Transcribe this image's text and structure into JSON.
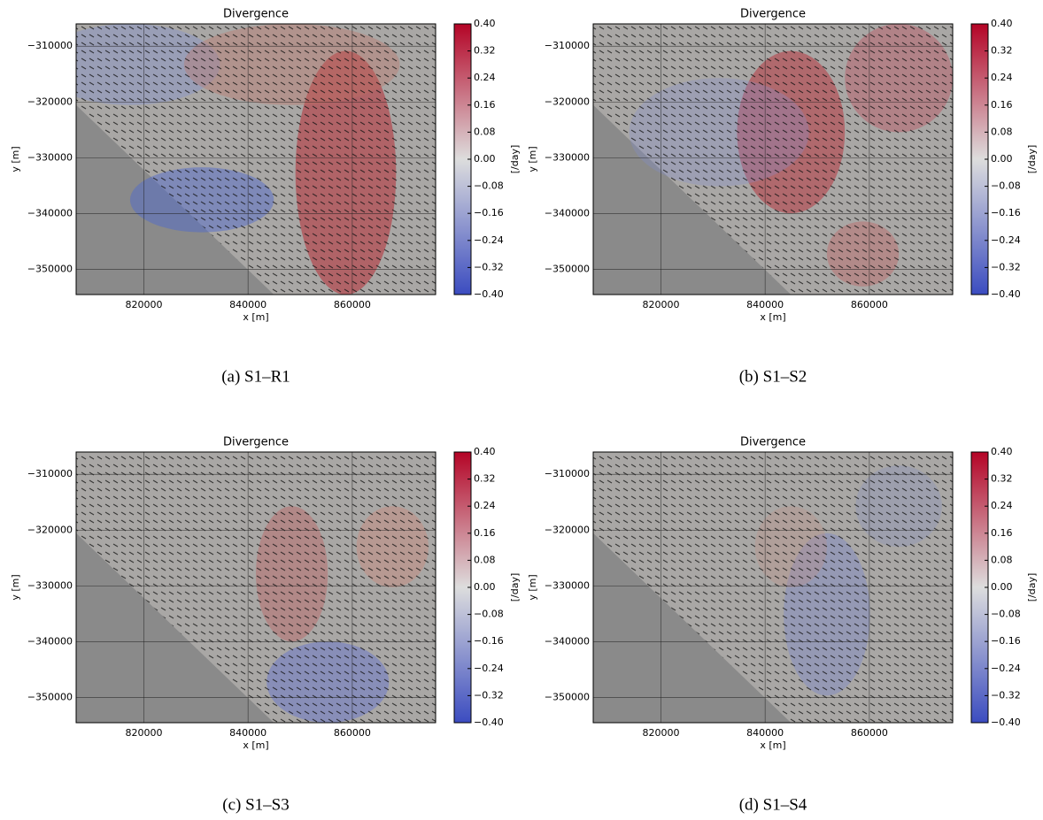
{
  "chart_data": [
    {
      "type": "heatmap",
      "title": "Divergence",
      "xlabel": "x [m]",
      "ylabel": "y [m]",
      "caption": "(a) S1–R1",
      "xlim": [
        807000,
        876000
      ],
      "xticks": [
        820000,
        840000,
        860000
      ],
      "ylim": [
        -354500,
        -306000
      ],
      "yticks": [
        {
          "value": -350000,
          "label": "−350000"
        },
        {
          "value": -340000,
          "label": "−340000"
        },
        {
          "value": -330000,
          "label": "−330000"
        },
        {
          "value": -320000,
          "label": "−320000"
        },
        {
          "value": -310000,
          "label": "−310000"
        }
      ],
      "grid": true,
      "colorbar": {
        "label": "[/day]",
        "lim": [
          -0.4,
          0.4
        ],
        "colormap": [
          "#3b4cc0",
          "#dddddd",
          "#b40426"
        ],
        "ticks": [
          {
            "value": -0.4,
            "label": "−0.40"
          },
          {
            "value": -0.32,
            "label": "−0.32"
          },
          {
            "value": -0.24,
            "label": "−0.24"
          },
          {
            "value": -0.16,
            "label": "−0.16"
          },
          {
            "value": -0.08,
            "label": "−0.08"
          },
          {
            "value": 0,
            "label": "0.00"
          },
          0.08,
          0.16,
          0.24,
          0.32,
          {
            "value": 0.4,
            "label": "0.40"
          }
        ]
      }
    },
    {
      "type": "heatmap",
      "title": "Divergence",
      "xlabel": "x [m]",
      "ylabel": "y [m]",
      "caption": "(b) S1–S2",
      "xlim": [
        807000,
        876000
      ],
      "xticks": [
        820000,
        840000,
        860000
      ],
      "ylim": [
        -354500,
        -306000
      ],
      "yticks": [
        {
          "value": -350000,
          "label": "−350000"
        },
        {
          "value": -340000,
          "label": "−340000"
        },
        {
          "value": -330000,
          "label": "−330000"
        },
        {
          "value": -320000,
          "label": "−320000"
        },
        {
          "value": -310000,
          "label": "−310000"
        }
      ],
      "grid": true,
      "colorbar": {
        "label": "[/day]",
        "lim": [
          -0.4,
          0.4
        ],
        "colormap": [
          "#3b4cc0",
          "#dddddd",
          "#b40426"
        ],
        "ticks": [
          {
            "value": -0.4,
            "label": "−0.40"
          },
          {
            "value": -0.32,
            "label": "−0.32"
          },
          {
            "value": -0.24,
            "label": "−0.24"
          },
          {
            "value": -0.16,
            "label": "−0.16"
          },
          {
            "value": -0.08,
            "label": "−0.08"
          },
          {
            "value": 0,
            "label": "0.00"
          },
          0.08,
          0.16,
          0.24,
          0.32,
          {
            "value": 0.4,
            "label": "0.40"
          }
        ]
      }
    },
    {
      "type": "heatmap",
      "title": "Divergence",
      "xlabel": "x [m]",
      "ylabel": "y [m]",
      "caption": "(c) S1–S3",
      "xlim": [
        807000,
        876000
      ],
      "xticks": [
        820000,
        840000,
        860000
      ],
      "ylim": [
        -354500,
        -306000
      ],
      "yticks": [
        {
          "value": -350000,
          "label": "−350000"
        },
        {
          "value": -340000,
          "label": "−340000"
        },
        {
          "value": -330000,
          "label": "−330000"
        },
        {
          "value": -320000,
          "label": "−320000"
        },
        {
          "value": -310000,
          "label": "−310000"
        }
      ],
      "grid": true,
      "colorbar": {
        "label": "[/day]",
        "lim": [
          -0.4,
          0.4
        ],
        "colormap": [
          "#3b4cc0",
          "#dddddd",
          "#b40426"
        ],
        "ticks": [
          {
            "value": -0.4,
            "label": "−0.40"
          },
          {
            "value": -0.32,
            "label": "−0.32"
          },
          {
            "value": -0.24,
            "label": "−0.24"
          },
          {
            "value": -0.16,
            "label": "−0.16"
          },
          {
            "value": -0.08,
            "label": "−0.08"
          },
          {
            "value": 0,
            "label": "0.00"
          },
          0.08,
          0.16,
          0.24,
          0.32,
          {
            "value": 0.4,
            "label": "0.40"
          }
        ]
      }
    },
    {
      "type": "heatmap",
      "title": "Divergence",
      "xlabel": "x [m]",
      "ylabel": "y [m]",
      "caption": "(d) S1–S4",
      "xlim": [
        807000,
        876000
      ],
      "xticks": [
        820000,
        840000,
        860000
      ],
      "ylim": [
        -354500,
        -306000
      ],
      "yticks": [
        {
          "value": -350000,
          "label": "−350000"
        },
        {
          "value": -340000,
          "label": "−340000"
        },
        {
          "value": -330000,
          "label": "−330000"
        },
        {
          "value": -320000,
          "label": "−320000"
        },
        {
          "value": -310000,
          "label": "−310000"
        }
      ],
      "grid": true,
      "colorbar": {
        "label": "[/day]",
        "lim": [
          -0.4,
          0.4
        ],
        "colormap": [
          "#3b4cc0",
          "#dddddd",
          "#b40426"
        ],
        "ticks": [
          {
            "value": -0.4,
            "label": "−0.40"
          },
          {
            "value": -0.32,
            "label": "−0.32"
          },
          {
            "value": -0.24,
            "label": "−0.24"
          },
          {
            "value": -0.16,
            "label": "−0.16"
          },
          {
            "value": -0.08,
            "label": "−0.08"
          },
          {
            "value": 0,
            "label": "0.00"
          },
          0.08,
          0.16,
          0.24,
          0.32,
          {
            "value": 0.4,
            "label": "0.40"
          }
        ]
      }
    }
  ]
}
